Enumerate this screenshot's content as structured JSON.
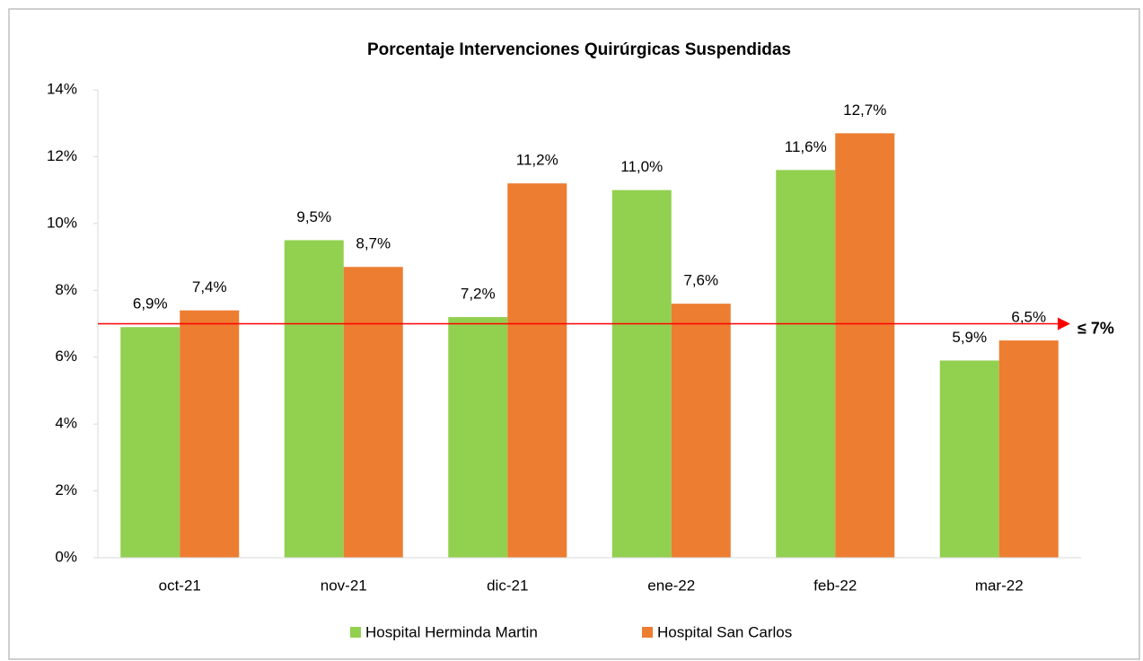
{
  "chart_data": {
    "type": "bar",
    "title": "Porcentaje Intervenciones Quirúrgicas Suspendidas",
    "categories": [
      "oct-21",
      "nov-21",
      "dic-21",
      "ene-22",
      "feb-22",
      "mar-22"
    ],
    "series": [
      {
        "name": "Hospital Herminda Martin",
        "color": "#92d050",
        "values": [
          6.9,
          9.5,
          7.2,
          11.0,
          11.6,
          5.9
        ],
        "value_labels": [
          "6,9%",
          "9,5%",
          "7,2%",
          "11,0%",
          "11,6%",
          "5,9%"
        ]
      },
      {
        "name": "Hospital San Carlos",
        "color": "#ed7d31",
        "values": [
          7.4,
          8.7,
          11.2,
          7.6,
          12.7,
          6.5
        ],
        "value_labels": [
          "7,4%",
          "8,7%",
          "11,2%",
          "7,6%",
          "12,7%",
          "6,5%"
        ]
      }
    ],
    "ylim": [
      0,
      14
    ],
    "yticks": [
      {
        "value": 0,
        "label": "0%"
      },
      {
        "value": 2,
        "label": "2%"
      },
      {
        "value": 4,
        "label": "4%"
      },
      {
        "value": 6,
        "label": "6%"
      },
      {
        "value": 8,
        "label": "8%"
      },
      {
        "value": 10,
        "label": "10%"
      },
      {
        "value": 12,
        "label": "12%"
      },
      {
        "value": 14,
        "label": "14%"
      }
    ],
    "reference_line": {
      "value": 7,
      "label": "≤ 7%",
      "color": "#ff0000"
    },
    "legend": "bottom"
  }
}
